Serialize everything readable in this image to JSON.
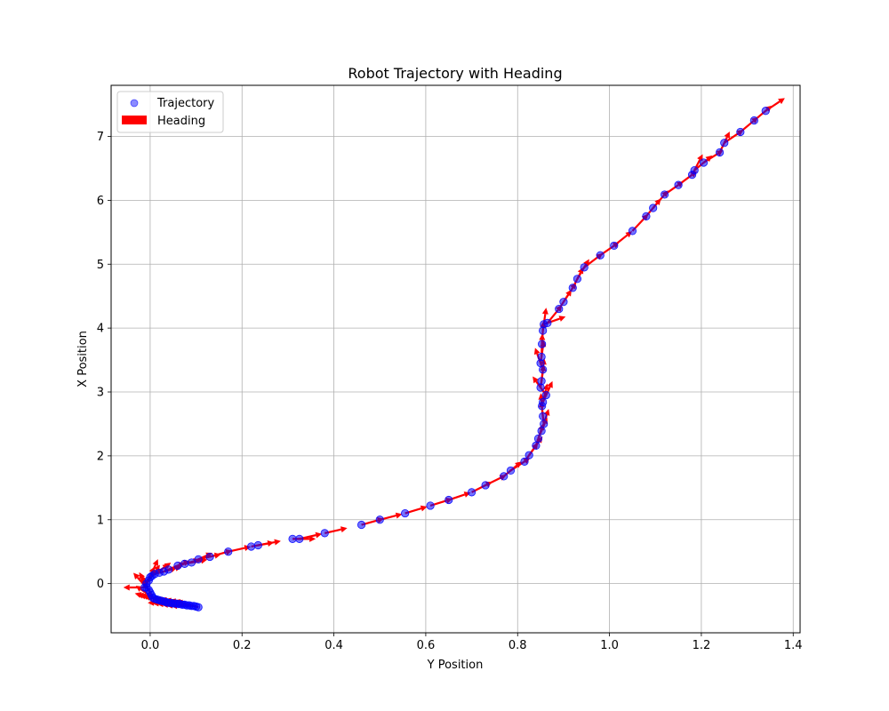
{
  "chart_data": {
    "type": "scatter",
    "title": "Robot Trajectory with Heading",
    "xlabel": "Y Position",
    "ylabel": "X Position",
    "xlim": [
      -0.085,
      1.415
    ],
    "ylim": [
      -0.77,
      7.8
    ],
    "xticks": [
      0.0,
      0.2,
      0.4,
      0.6,
      0.8,
      1.0,
      1.2,
      1.4
    ],
    "xtick_labels": [
      "0.0",
      "0.2",
      "0.4",
      "0.6",
      "0.8",
      "1.0",
      "1.2",
      "1.4"
    ],
    "yticks": [
      0,
      1,
      2,
      3,
      4,
      5,
      6,
      7
    ],
    "ytick_labels": [
      "0",
      "1",
      "2",
      "3",
      "4",
      "5",
      "6",
      "7"
    ],
    "grid": true,
    "legend": {
      "position": "upper left",
      "entries": [
        {
          "label": "Trajectory",
          "marker": "circle"
        },
        {
          "label": "Heading",
          "marker": "patch"
        }
      ]
    },
    "colors": {
      "trajectory": "#0000ff",
      "heading": "#ff0000",
      "grid": "#b0b0b0"
    },
    "series": [
      {
        "name": "Trajectory",
        "x": [
          0.105,
          0.1,
          0.095,
          0.09,
          0.085,
          0.08,
          0.075,
          0.07,
          0.065,
          0.06,
          0.055,
          0.05,
          0.045,
          0.04,
          0.035,
          0.03,
          0.025,
          0.02,
          0.015,
          0.01,
          0.006,
          0.003,
          0.0,
          -0.003,
          -0.008,
          -0.012,
          -0.008,
          -0.003,
          0.0,
          0.004,
          0.01,
          0.02,
          0.03,
          0.04,
          0.06,
          0.075,
          0.09,
          0.105,
          0.13,
          0.17,
          0.22,
          0.235,
          0.31,
          0.325,
          0.38,
          0.46,
          0.5,
          0.555,
          0.61,
          0.65,
          0.7,
          0.73,
          0.77,
          0.785,
          0.815,
          0.825,
          0.84,
          0.845,
          0.852,
          0.857,
          0.855,
          0.853,
          0.855,
          0.862,
          0.85,
          0.852,
          0.855,
          0.85,
          0.852,
          0.853,
          0.855,
          0.857,
          0.865,
          0.89,
          0.9,
          0.92,
          0.93,
          0.945,
          0.98,
          1.01,
          1.05,
          1.08,
          1.095,
          1.12,
          1.15,
          1.18,
          1.185,
          1.205,
          1.24,
          1.25,
          1.285,
          1.315,
          1.34
        ],
        "y": [
          -0.37,
          -0.36,
          -0.35,
          -0.35,
          -0.34,
          -0.34,
          -0.33,
          -0.33,
          -0.32,
          -0.32,
          -0.31,
          -0.31,
          -0.3,
          -0.3,
          -0.29,
          -0.28,
          -0.27,
          -0.26,
          -0.25,
          -0.24,
          -0.22,
          -0.18,
          -0.14,
          -0.1,
          -0.06,
          -0.06,
          0.0,
          0.05,
          0.1,
          0.12,
          0.15,
          0.17,
          0.19,
          0.22,
          0.28,
          0.31,
          0.33,
          0.38,
          0.42,
          0.5,
          0.58,
          0.6,
          0.7,
          0.7,
          0.79,
          0.92,
          1.0,
          1.1,
          1.22,
          1.31,
          1.43,
          1.54,
          1.68,
          1.77,
          1.91,
          2.01,
          2.16,
          2.27,
          2.39,
          2.5,
          2.62,
          2.78,
          2.84,
          2.95,
          3.07,
          3.17,
          3.35,
          3.45,
          3.55,
          3.75,
          3.96,
          4.06,
          4.08,
          4.3,
          4.41,
          4.63,
          4.77,
          4.95,
          5.14,
          5.29,
          5.52,
          5.75,
          5.88,
          6.09,
          6.24,
          6.4,
          6.47,
          6.59,
          6.75,
          6.9,
          7.07,
          7.25,
          7.4
        ]
      },
      {
        "name": "Heading",
        "type": "quiver",
        "length": 0.03,
        "x_end": 1.365,
        "y_end": 7.52
      }
    ]
  }
}
